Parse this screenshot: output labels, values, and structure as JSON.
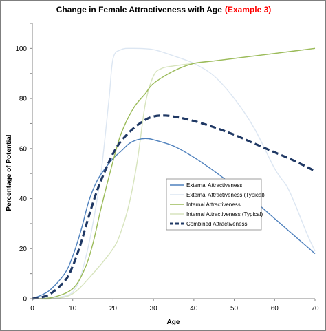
{
  "chart_data": {
    "type": "line",
    "title": "Change in Female Attractiveness with Age",
    "title_suffix": "(Example 3)",
    "title_suffix_color": "#ff0000",
    "xlabel": "Age",
    "ylabel": "Percentage of Potential",
    "xlim": [
      0,
      70
    ],
    "ylim": [
      0,
      110
    ],
    "xticks": [
      0,
      10,
      20,
      30,
      40,
      50,
      60,
      70
    ],
    "yticks": [
      0,
      20,
      40,
      60,
      80,
      100
    ],
    "grid": false,
    "legend_position": "right-center",
    "series": [
      {
        "name": "External Attractiveness",
        "color": "#4f81bd",
        "style": "solid",
        "x": [
          0,
          4,
          8,
          10,
          12,
          14,
          16,
          18,
          20,
          22,
          24,
          26,
          28,
          30,
          35,
          40,
          45,
          50,
          55,
          60,
          65,
          70
        ],
        "y": [
          0,
          3,
          10,
          17,
          27,
          39,
          47,
          52,
          56,
          59,
          62,
          63.5,
          64,
          63.5,
          61,
          56.5,
          51,
          45,
          39,
          32,
          25,
          18
        ]
      },
      {
        "name": "External Attractiveness (Typical)",
        "color": "#dce6f2",
        "style": "solid",
        "x": [
          0,
          8,
          11,
          13,
          15,
          17,
          19,
          20,
          22,
          25,
          30,
          35,
          40,
          45,
          50,
          55,
          60,
          63,
          65,
          68,
          70
        ],
        "y": [
          0,
          1,
          5,
          15,
          30,
          50,
          80,
          96,
          99.5,
          100,
          99.5,
          97,
          94,
          89,
          80,
          68,
          52,
          45,
          38,
          26,
          19
        ]
      },
      {
        "name": "Internal Attractiveness",
        "color": "#9bbb59",
        "style": "solid",
        "x": [
          0,
          5,
          10,
          13,
          15,
          17,
          20,
          22,
          25,
          28,
          30,
          35,
          40,
          45,
          50,
          55,
          60,
          65,
          70
        ],
        "y": [
          0,
          0.5,
          4,
          12,
          22,
          36,
          55,
          66,
          76,
          82,
          86,
          91,
          94,
          95,
          96,
          97,
          98,
          99,
          100
        ]
      },
      {
        "name": "Internal Attractiveness (Typical)",
        "color": "#d7e4bd",
        "style": "solid",
        "x": [
          0,
          5,
          10,
          15,
          20,
          22,
          24,
          26,
          28,
          30,
          32,
          35,
          40,
          45,
          50,
          60,
          70
        ],
        "y": [
          0,
          0,
          2,
          10,
          20,
          27,
          38,
          55,
          78,
          89,
          92,
          93,
          94,
          95,
          96,
          98,
          100
        ]
      },
      {
        "name": "Combined Attractiveness",
        "color": "#1f3864",
        "style": "dashed",
        "x": [
          0,
          4,
          8,
          10,
          12,
          14,
          16,
          18,
          20,
          22,
          25,
          28,
          30,
          32,
          35,
          40,
          45,
          50,
          55,
          60,
          65,
          70
        ],
        "y": [
          0,
          1.5,
          7,
          13,
          22,
          33,
          43,
          51,
          58,
          63,
          68,
          71.5,
          72.8,
          73.2,
          72.8,
          71,
          68.5,
          65.5,
          62,
          58.5,
          55,
          51
        ]
      }
    ]
  }
}
